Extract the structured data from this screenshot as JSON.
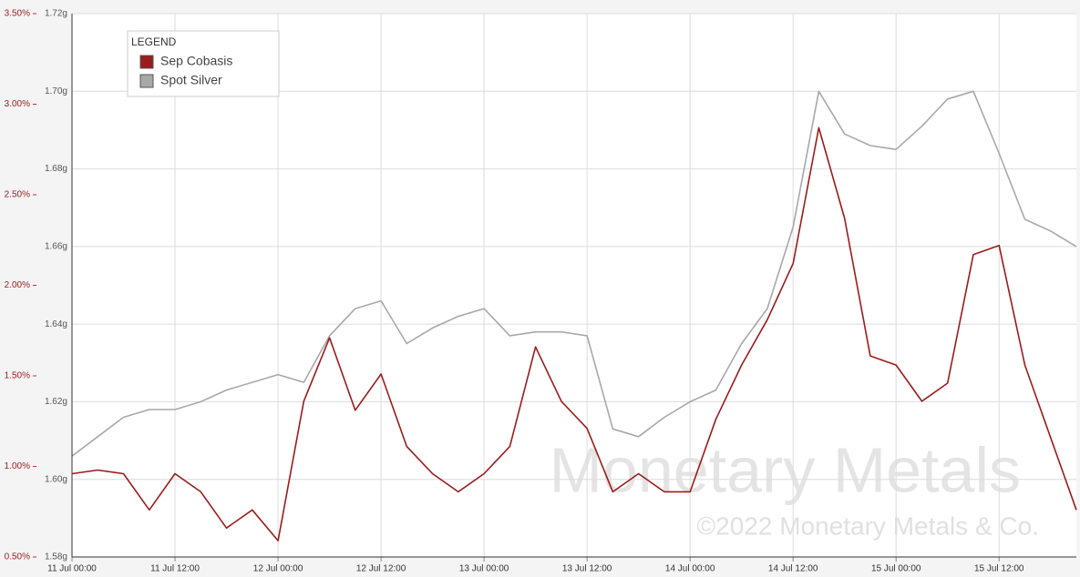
{
  "chart_data": {
    "type": "line",
    "legend_title": "LEGEND",
    "legend": "top-left",
    "grid": true,
    "annotations": [
      "Monetary Metals",
      "©2022 Monetary Metals & Co."
    ],
    "x": [
      "11 Jul 00:00",
      "11 Jul 03:00",
      "11 Jul 06:00",
      "11 Jul 09:00",
      "11 Jul 12:00",
      "11 Jul 15:00",
      "11 Jul 18:00",
      "11 Jul 21:00",
      "12 Jul 00:00",
      "12 Jul 03:00",
      "12 Jul 06:00",
      "12 Jul 09:00",
      "12 Jul 12:00",
      "12 Jul 15:00",
      "12 Jul 18:00",
      "12 Jul 21:00",
      "13 Jul 00:00",
      "13 Jul 03:00",
      "13 Jul 06:00",
      "13 Jul 09:00",
      "13 Jul 12:00",
      "13 Jul 15:00",
      "13 Jul 18:00",
      "13 Jul 21:00",
      "14 Jul 00:00",
      "14 Jul 03:00",
      "14 Jul 06:00",
      "14 Jul 09:00",
      "14 Jul 12:00",
      "14 Jul 15:00",
      "14 Jul 18:00",
      "14 Jul 21:00",
      "15 Jul 00:00",
      "15 Jul 03:00",
      "15 Jul 06:00",
      "15 Jul 09:00",
      "15 Jul 12:00",
      "15 Jul 15:00",
      "15 Jul 18:00",
      "15 Jul 21:00"
    ],
    "xlim": [
      "11 Jul 00:00",
      "15 Jul 21:00"
    ],
    "xticks": [
      "11 Jul 00:00",
      "11 Jul 12:00",
      "12 Jul 00:00",
      "12 Jul 12:00",
      "13 Jul 00:00",
      "13 Jul 12:00",
      "14 Jul 00:00",
      "14 Jul 12:00",
      "15 Jul 00:00",
      "15 Jul 12:00"
    ],
    "ylim": [
      0.5,
      3.5
    ],
    "yticks": [
      {
        "value": 0.5,
        "label": "0.50%"
      },
      {
        "value": 1.0,
        "label": "1.00%"
      },
      {
        "value": 1.5,
        "label": "1.50%"
      },
      {
        "value": 2.0,
        "label": "2.00%"
      },
      {
        "value": 2.5,
        "label": "2.50%"
      },
      {
        "value": 3.0,
        "label": "3.00%"
      },
      {
        "value": 3.5,
        "label": "3.50%"
      }
    ],
    "y2lim": [
      1.58,
      1.72
    ],
    "y2ticks": [
      {
        "value": 1.58,
        "label": "1.58g"
      },
      {
        "value": 1.6,
        "label": "1.60g"
      },
      {
        "value": 1.62,
        "label": "1.62g"
      },
      {
        "value": 1.64,
        "label": "1.64g"
      },
      {
        "value": 1.66,
        "label": "1.66g"
      },
      {
        "value": 1.68,
        "label": "1.68g"
      },
      {
        "value": 1.7,
        "label": "1.70g"
      },
      {
        "value": 1.72,
        "label": "1.72g"
      }
    ],
    "series": [
      {
        "name": "Sep Cobasis",
        "color": "#9b1c1c",
        "axis": "y",
        "values": [
          0.96,
          0.98,
          0.96,
          0.76,
          0.96,
          0.86,
          0.66,
          0.76,
          0.59,
          1.36,
          1.71,
          1.31,
          1.51,
          1.11,
          0.96,
          0.86,
          0.96,
          1.11,
          1.66,
          1.36,
          1.21,
          0.86,
          0.96,
          0.86,
          0.86,
          1.26,
          1.56,
          1.81,
          2.12,
          2.87,
          2.37,
          1.61,
          1.56,
          1.36,
          1.46,
          2.17,
          2.22,
          1.56,
          1.16,
          0.76
        ]
      },
      {
        "name": "Spot Silver",
        "color": "#a8a8a8",
        "axis": "y2",
        "values": [
          1.606,
          1.611,
          1.616,
          1.618,
          1.618,
          1.62,
          1.623,
          1.625,
          1.627,
          1.625,
          1.637,
          1.644,
          1.646,
          1.635,
          1.639,
          1.642,
          1.644,
          1.637,
          1.638,
          1.638,
          1.637,
          1.613,
          1.611,
          1.616,
          1.62,
          1.623,
          1.635,
          1.644,
          1.665,
          1.7,
          1.689,
          1.686,
          1.685,
          1.691,
          1.698,
          1.7,
          1.684,
          1.667,
          1.664,
          1.66
        ]
      }
    ]
  }
}
